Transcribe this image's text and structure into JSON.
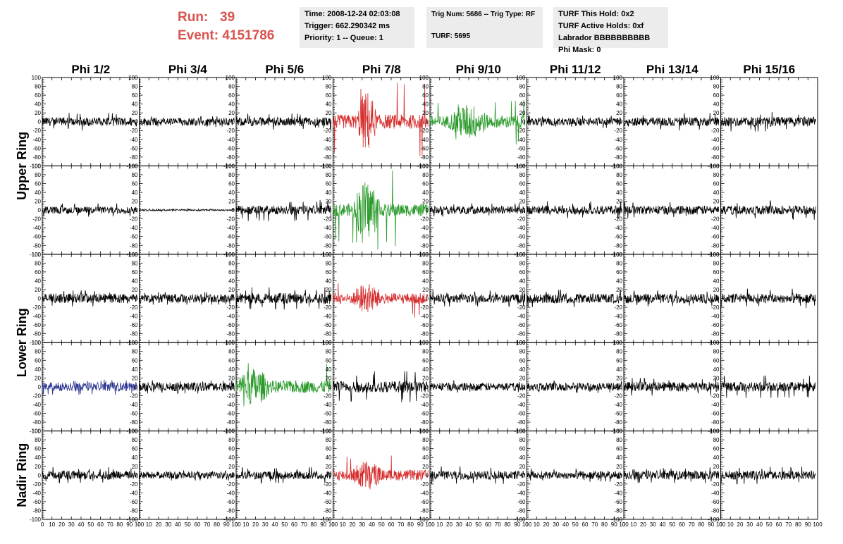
{
  "header": {
    "run_label": "Run:",
    "run_value": "39",
    "event_label": "Event:",
    "event_value": "4151786",
    "time": "Time: 2008-12-24 02:03:08",
    "trigger": "Trigger: 662.290342 ms",
    "priority": "Priority: 1 -- Queue: 1",
    "trig_num": "Trig Num: 5686 -- Trig Type: RF",
    "turf": "TURF: 5695",
    "turf_hold": "TURF This Hold: 0x2",
    "turf_active": "TURF Active Holds: 0xf",
    "labrador": "Labrador BBBBBBBBBB",
    "phi_mask": "Phi Mask: 0"
  },
  "colors": {
    "black": "#000000",
    "red": "#d62d2d",
    "green": "#2a9a2a",
    "blue": "#2b3490",
    "accent": "#d9534f"
  },
  "chart_data": {
    "type": "line",
    "columns": [
      "Phi 1/2",
      "Phi 3/4",
      "Phi 5/6",
      "Phi 7/8",
      "Phi 9/10",
      "Phi 11/12",
      "Phi 13/14",
      "Phi 15/16"
    ],
    "row_groups": [
      {
        "label": "Upper Ring",
        "rows": [
          0,
          1
        ]
      },
      {
        "label": "Lower Ring",
        "rows": [
          2,
          3
        ]
      },
      {
        "label": "Nadir Ring",
        "rows": [
          4
        ]
      }
    ],
    "ylim": [
      -100,
      100
    ],
    "xlim": [
      0,
      100
    ],
    "yticks": [
      100,
      80,
      60,
      40,
      20,
      0,
      -20,
      -40,
      -60,
      -80,
      -100
    ],
    "xticks": [
      0,
      10,
      20,
      30,
      40,
      50,
      60,
      70,
      80,
      90,
      100
    ],
    "yticklabels": [
      "100",
      "80",
      "60",
      "40",
      "20",
      "0",
      "-20",
      "-40",
      "-60",
      "-80",
      "-100"
    ],
    "xticklabels": [
      "0",
      "10",
      "20",
      "30",
      "40",
      "50",
      "60",
      "70",
      "80",
      "90",
      "100"
    ],
    "grid": false,
    "trace_x_range": [
      0,
      98
    ],
    "panels": [
      [
        {
          "color": "black",
          "amp": 10,
          "peak": 20
        },
        {
          "color": "black",
          "amp": 9,
          "peak": 12
        },
        {
          "color": "black",
          "amp": 10,
          "peak": 18
        },
        {
          "color": "red",
          "amp": 16,
          "peak": 95,
          "burst": [
            25,
            45
          ]
        },
        {
          "color": "green",
          "amp": 14,
          "peak": 52,
          "burst": [
            20,
            60
          ]
        },
        {
          "color": "black",
          "amp": 9,
          "peak": 14
        },
        {
          "color": "black",
          "amp": 10,
          "peak": 20
        },
        {
          "color": "black",
          "amp": 11,
          "peak": 22
        }
      ],
      [
        {
          "color": "black",
          "amp": 8,
          "peak": 15
        },
        {
          "color": "black",
          "amp": 2,
          "peak": 3
        },
        {
          "color": "black",
          "amp": 10,
          "peak": 25
        },
        {
          "color": "green",
          "amp": 14,
          "peak": 90,
          "burst": [
            20,
            50
          ]
        },
        {
          "color": "black",
          "amp": 9,
          "peak": 15
        },
        {
          "color": "black",
          "amp": 10,
          "peak": 20
        },
        {
          "color": "black",
          "amp": 10,
          "peak": 18
        },
        {
          "color": "black",
          "amp": 10,
          "peak": 22
        }
      ],
      [
        {
          "color": "black",
          "amp": 11,
          "peak": 18
        },
        {
          "color": "black",
          "amp": 10,
          "peak": 14
        },
        {
          "color": "black",
          "amp": 12,
          "peak": 25
        },
        {
          "color": "red",
          "amp": 12,
          "peak": 45,
          "burst": [
            20,
            50
          ]
        },
        {
          "color": "black",
          "amp": 10,
          "peak": 18
        },
        {
          "color": "black",
          "amp": 11,
          "peak": 20
        },
        {
          "color": "black",
          "amp": 11,
          "peak": 18
        },
        {
          "color": "black",
          "amp": 11,
          "peak": 22
        }
      ],
      [
        {
          "color": "blue",
          "amp": 10,
          "peak": 18
        },
        {
          "color": "black",
          "amp": 10,
          "peak": 15
        },
        {
          "color": "green",
          "amp": 14,
          "peak": 55,
          "burst": [
            0,
            35
          ]
        },
        {
          "color": "black",
          "amp": 13,
          "peak": 35
        },
        {
          "color": "black",
          "amp": 9,
          "peak": 15
        },
        {
          "color": "black",
          "amp": 9,
          "peak": 14
        },
        {
          "color": "black",
          "amp": 11,
          "peak": 20
        },
        {
          "color": "black",
          "amp": 11,
          "peak": 25
        }
      ],
      [
        {
          "color": "black",
          "amp": 10,
          "peak": 18
        },
        {
          "color": "black",
          "amp": 8,
          "peak": 12
        },
        {
          "color": "black",
          "amp": 9,
          "peak": 18
        },
        {
          "color": "red",
          "amp": 12,
          "peak": 45,
          "burst": [
            20,
            50
          ]
        },
        {
          "color": "black",
          "amp": 10,
          "peak": 20
        },
        {
          "color": "black",
          "amp": 9,
          "peak": 15
        },
        {
          "color": "black",
          "amp": 10,
          "peak": 18
        },
        {
          "color": "black",
          "amp": 10,
          "peak": 20
        }
      ]
    ]
  }
}
